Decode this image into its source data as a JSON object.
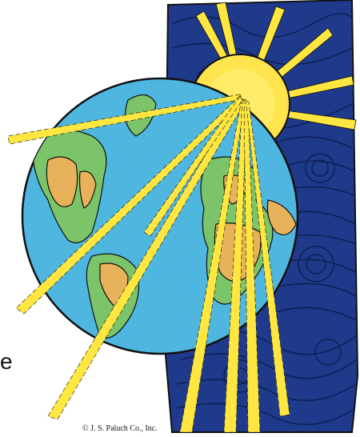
{
  "illustration": {
    "copyright": "© J. S. Paluch Co., Inc.",
    "cropped_edge_text": "e"
  },
  "colors": {
    "night_sky": "#1f3a8a",
    "night_swirl": "#0b1a4a",
    "sun": "#ffe44d",
    "sun_core": "#fff07a",
    "ocean": "#4fb6e0",
    "land_green": "#7cc46a",
    "land_tan": "#e8b25a",
    "ray": "#ffe640",
    "outline": "#111111"
  }
}
